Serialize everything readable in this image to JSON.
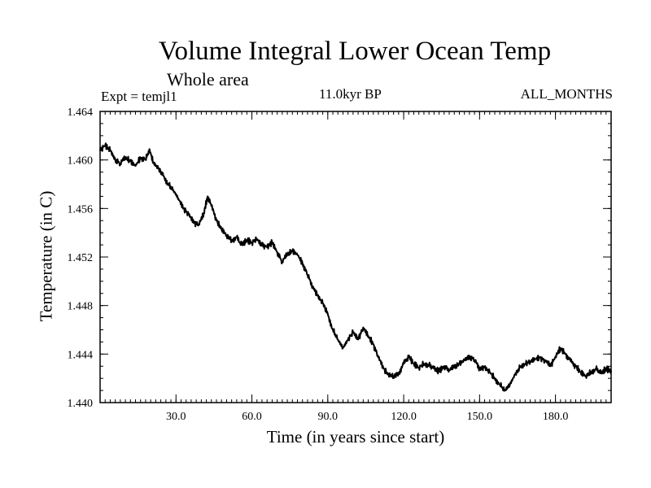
{
  "chart_data": {
    "type": "line",
    "title": "Volume Integral Lower Ocean Temp",
    "subtitle": "Whole area",
    "annotation_left": "Expt = temjl1",
    "annotation_center": "11.0kyr BP",
    "annotation_right": "ALL_MONTHS",
    "xlabel": "Time (in years since start)",
    "ylabel": "Temperature (in C)",
    "xlim": [
      0,
      202
    ],
    "ylim": [
      1.44,
      1.464
    ],
    "x_ticks": [
      30,
      60,
      90,
      120,
      150,
      180
    ],
    "x_tick_labels": [
      "30.0",
      "60.0",
      "90.0",
      "120.0",
      "150.0",
      "180.0"
    ],
    "y_ticks": [
      1.44,
      1.444,
      1.448,
      1.452,
      1.456,
      1.46,
      1.464
    ],
    "y_tick_labels": [
      "1.440",
      "1.444",
      "1.448",
      "1.452",
      "1.456",
      "1.460",
      "1.464"
    ],
    "series": [
      {
        "name": "Volume Integral Lower Ocean Temp",
        "color": "#000000",
        "x": [
          0,
          2,
          4,
          6,
          8,
          10,
          12,
          14,
          16,
          18,
          19.5,
          21,
          23,
          25,
          27,
          29,
          31,
          33,
          35,
          37,
          39,
          41,
          42.5,
          44,
          46,
          48,
          50,
          52,
          54,
          56,
          58,
          60,
          62,
          64,
          66,
          68,
          70,
          72,
          74,
          76,
          78,
          80,
          82,
          84,
          86,
          88,
          90,
          92,
          94,
          96,
          98,
          100,
          102,
          104,
          106,
          108,
          110,
          112,
          114,
          116,
          118,
          120,
          122,
          124,
          126,
          128,
          130,
          132,
          134,
          136,
          138,
          140,
          142,
          144,
          146,
          148,
          150,
          152,
          154,
          156,
          158,
          160,
          162,
          164,
          166,
          168,
          170,
          172,
          174,
          176,
          178,
          180,
          182,
          184,
          186,
          188,
          190,
          192,
          194,
          196,
          198,
          200,
          202
        ],
        "y": [
          1.4608,
          1.4612,
          1.4608,
          1.46,
          1.4597,
          1.4602,
          1.4599,
          1.4595,
          1.4602,
          1.46,
          1.4609,
          1.4598,
          1.4593,
          1.4587,
          1.458,
          1.4575,
          1.4568,
          1.456,
          1.4555,
          1.4548,
          1.4547,
          1.4556,
          1.457,
          1.4562,
          1.455,
          1.4543,
          1.4538,
          1.4534,
          1.4536,
          1.453,
          1.4534,
          1.4532,
          1.4535,
          1.453,
          1.4528,
          1.4532,
          1.4524,
          1.4516,
          1.4522,
          1.4525,
          1.4522,
          1.4515,
          1.4505,
          1.4496,
          1.4488,
          1.4482,
          1.4473,
          1.446,
          1.4452,
          1.4445,
          1.4452,
          1.4458,
          1.4452,
          1.4462,
          1.4455,
          1.4448,
          1.4437,
          1.4428,
          1.4423,
          1.4422,
          1.4424,
          1.4432,
          1.4438,
          1.4432,
          1.4429,
          1.4432,
          1.4431,
          1.4428,
          1.4426,
          1.443,
          1.4427,
          1.4429,
          1.4432,
          1.4435,
          1.4438,
          1.4435,
          1.4428,
          1.4429,
          1.4425,
          1.442,
          1.4415,
          1.441,
          1.4415,
          1.4423,
          1.4429,
          1.4432,
          1.4434,
          1.4436,
          1.4437,
          1.4434,
          1.443,
          1.4438,
          1.4445,
          1.444,
          1.4434,
          1.443,
          1.4425,
          1.4422,
          1.4425,
          1.4428,
          1.4424,
          1.4428,
          1.4426
        ]
      }
    ]
  }
}
